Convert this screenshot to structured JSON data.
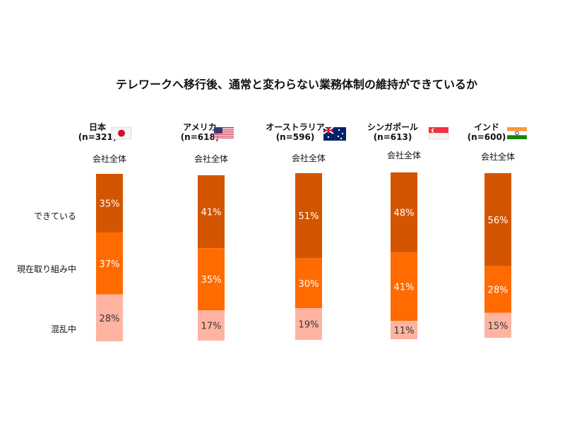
{
  "chart_data": {
    "type": "bar",
    "stacked": true,
    "title": "テレワークへ移行後、通常と変わらない業務体制の維持ができているか",
    "categories": [
      "日本",
      "アメリカ",
      "オーストラリア",
      "シンガポール",
      "インド"
    ],
    "sample_sizes": [
      "(n=321)",
      "(n=618)",
      "(n=596)",
      "(n=613)",
      "(n=600)"
    ],
    "flags": [
      "japan-flag",
      "usa-flag",
      "australia-flag",
      "singapore-flag",
      "india-flag"
    ],
    "subgroup_label": "会社全体",
    "series": [
      {
        "name": "できている",
        "color": "#D45500",
        "label_color": "#FFFFFF",
        "values": [
          35,
          41,
          51,
          48,
          56
        ]
      },
      {
        "name": "現在取り組み中",
        "color": "#FF6B00",
        "label_color": "#FFFFFF",
        "values": [
          37,
          35,
          30,
          41,
          28
        ]
      },
      {
        "name": "混乱中",
        "color": "#FFB4A2",
        "label_color": "#333333",
        "values": [
          28,
          17,
          19,
          11,
          15
        ]
      }
    ],
    "value_suffix": "%",
    "ylim": [
      0,
      100
    ],
    "grid": false,
    "legend": "left"
  }
}
